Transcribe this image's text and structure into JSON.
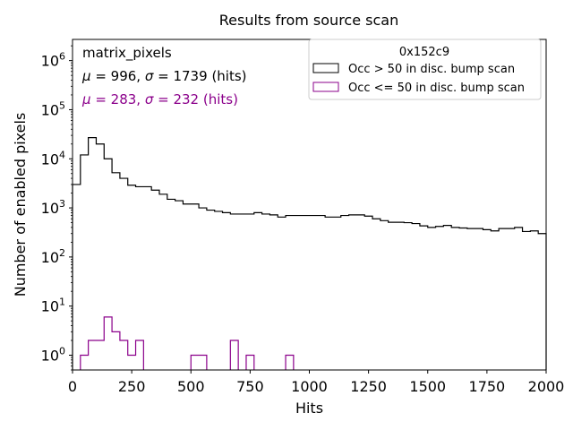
{
  "chart_data": {
    "type": "histogram",
    "title": "Results from source scan",
    "xlabel": "Hits",
    "ylabel": "Number of enabled pixels",
    "xlim": [
      0,
      2000
    ],
    "ylim": [
      0.5,
      2700000
    ],
    "yscale": "log",
    "grid": false,
    "bin_width": 33.33,
    "x_ticks": [
      0,
      250,
      500,
      750,
      1000,
      1250,
      1500,
      1750,
      2000
    ],
    "x_tick_labels": [
      "0",
      "250",
      "500",
      "750",
      "1000",
      "1250",
      "1500",
      "1750",
      "2000"
    ],
    "y_ticks": [
      {
        "value": 1,
        "base": "10",
        "exp": "0"
      },
      {
        "value": 10,
        "base": "10",
        "exp": "1"
      },
      {
        "value": 100,
        "base": "10",
        "exp": "2"
      },
      {
        "value": 1000,
        "base": "10",
        "exp": "3"
      },
      {
        "value": 10000,
        "base": "10",
        "exp": "4"
      },
      {
        "value": 100000,
        "base": "10",
        "exp": "5"
      },
      {
        "value": 1000000,
        "base": "10",
        "exp": "6"
      }
    ],
    "annotations": {
      "name": "matrix_pixels",
      "stats": [
        {
          "mu": "996",
          "sigma": "1739",
          "unit": "(hits)",
          "color": "#000000"
        },
        {
          "mu": "283",
          "sigma": "232",
          "unit": "(hits)",
          "color": "#8b008b"
        }
      ]
    },
    "legend": {
      "title": "0x152c9",
      "placement": "upper-right"
    },
    "series": [
      {
        "name": "Occ > 50 in disc. bump scan",
        "color": "#000000",
        "values": [
          3000,
          12000,
          27000,
          20000,
          10000,
          5200,
          4000,
          2900,
          2700,
          2700,
          2300,
          1900,
          1500,
          1400,
          1200,
          1200,
          1000,
          900,
          850,
          800,
          750,
          750,
          750,
          800,
          750,
          720,
          650,
          700,
          700,
          700,
          700,
          700,
          650,
          650,
          700,
          720,
          720,
          680,
          600,
          550,
          510,
          510,
          500,
          480,
          430,
          400,
          420,
          440,
          400,
          390,
          380,
          380,
          360,
          340,
          380,
          380,
          400,
          330,
          340,
          300
        ]
      },
      {
        "name": "Occ <= 50 in disc. bump scan",
        "color": "#8b008b",
        "values": [
          0,
          1,
          2,
          2,
          6,
          3,
          2,
          1,
          2,
          0,
          0,
          0,
          0,
          0,
          0,
          1,
          1,
          0,
          0,
          0,
          2,
          0,
          1,
          0,
          0,
          0,
          0,
          1,
          0,
          0,
          0,
          0,
          0,
          0,
          0,
          0,
          0,
          0,
          0,
          0,
          0,
          0,
          0,
          0,
          0,
          0,
          0,
          0,
          0,
          0,
          0,
          0,
          0,
          0,
          0,
          0,
          0,
          0,
          0,
          0
        ]
      }
    ]
  }
}
